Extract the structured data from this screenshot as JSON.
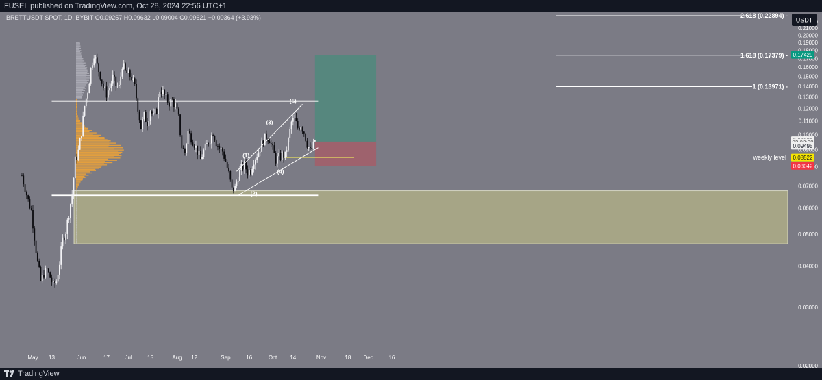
{
  "header": {
    "publish_line": "FUSEL published on TradingView.com, Oct 28, 2024 22:56 UTC+1"
  },
  "footer": {
    "brand": "TradingView"
  },
  "chart_data": {
    "type": "candlestick",
    "symbol_line": "BRETTUSDT SPOT, 1D, BYBIT  O0.09257  H0.09632  L0.09004  C0.09621  +0.00364 (+3.93%)",
    "currency_button": "USDT",
    "y_scale": "log",
    "ylim": [
      0.0197,
      0.2345
    ],
    "y_ticks": [
      "0.22000",
      "0.21000",
      "0.20000",
      "0.19000",
      "0.18000",
      "0.17000",
      "0.16000",
      "0.15000",
      "0.14000",
      "0.13000",
      "0.12000",
      "0.11000",
      "0.10000",
      "0.09000",
      "0.08000",
      "0.07000",
      "0.06000",
      "0.05000",
      "0.04000",
      "0.03000",
      "0.02000"
    ],
    "x_ticks": [
      {
        "label": "May",
        "date": "2024-05-01"
      },
      {
        "label": "13",
        "date": "2024-05-13"
      },
      {
        "label": "Jun",
        "date": "2024-06-01"
      },
      {
        "label": "17",
        "date": "2024-06-17"
      },
      {
        "label": "Jul",
        "date": "2024-07-01"
      },
      {
        "label": "15",
        "date": "2024-07-15"
      },
      {
        "label": "Aug",
        "date": "2024-08-01"
      },
      {
        "label": "12",
        "date": "2024-08-12"
      },
      {
        "label": "Sep",
        "date": "2024-09-01"
      },
      {
        "label": "16",
        "date": "2024-09-16"
      },
      {
        "label": "Oct",
        "date": "2024-10-01"
      },
      {
        "label": "14",
        "date": "2024-10-14"
      },
      {
        "label": "Nov",
        "date": "2024-11-01"
      },
      {
        "label": "18",
        "date": "2024-11-18"
      },
      {
        "label": "Dec",
        "date": "2024-12-01"
      },
      {
        "label": "16",
        "date": "2024-12-16"
      }
    ],
    "price_path": [
      [
        "2024-04-24",
        0.0752
      ],
      [
        "2024-04-26",
        0.069
      ],
      [
        "2024-04-28",
        0.063
      ],
      [
        "2024-04-30",
        0.059
      ],
      [
        "2024-05-02",
        0.049
      ],
      [
        "2024-05-04",
        0.041
      ],
      [
        "2024-05-06",
        0.036
      ],
      [
        "2024-05-08",
        0.038
      ],
      [
        "2024-05-10",
        0.039
      ],
      [
        "2024-05-12",
        0.037
      ],
      [
        "2024-05-14",
        0.035
      ],
      [
        "2024-05-16",
        0.036
      ],
      [
        "2024-05-18",
        0.041
      ],
      [
        "2024-05-20",
        0.048
      ],
      [
        "2024-05-22",
        0.051
      ],
      [
        "2024-05-24",
        0.058
      ],
      [
        "2024-05-26",
        0.066
      ],
      [
        "2024-05-28",
        0.083
      ],
      [
        "2024-05-30",
        0.089
      ],
      [
        "2024-06-01",
        0.102
      ],
      [
        "2024-06-03",
        0.122
      ],
      [
        "2024-06-05",
        0.136
      ],
      [
        "2024-06-07",
        0.158
      ],
      [
        "2024-06-09",
        0.176
      ],
      [
        "2024-06-11",
        0.162
      ],
      [
        "2024-06-13",
        0.151
      ],
      [
        "2024-06-15",
        0.139
      ],
      [
        "2024-06-17",
        0.133
      ],
      [
        "2024-06-19",
        0.139
      ],
      [
        "2024-06-21",
        0.149
      ],
      [
        "2024-06-23",
        0.141
      ],
      [
        "2024-06-25",
        0.139
      ],
      [
        "2024-06-27",
        0.163
      ],
      [
        "2024-06-29",
        0.155
      ],
      [
        "2024-07-01",
        0.152
      ],
      [
        "2024-07-03",
        0.149
      ],
      [
        "2024-07-05",
        0.139
      ],
      [
        "2024-07-07",
        0.121
      ],
      [
        "2024-07-09",
        0.105
      ],
      [
        "2024-07-11",
        0.114
      ],
      [
        "2024-07-13",
        0.109
      ],
      [
        "2024-07-15",
        0.119
      ],
      [
        "2024-07-17",
        0.113
      ],
      [
        "2024-07-19",
        0.119
      ],
      [
        "2024-07-21",
        0.137
      ],
      [
        "2024-07-23",
        0.134
      ],
      [
        "2024-07-25",
        0.128
      ],
      [
        "2024-07-27",
        0.125
      ],
      [
        "2024-07-29",
        0.127
      ],
      [
        "2024-07-31",
        0.122
      ],
      [
        "2024-08-02",
        0.112
      ],
      [
        "2024-08-04",
        0.092
      ],
      [
        "2024-08-06",
        0.088
      ],
      [
        "2024-08-08",
        0.102
      ],
      [
        "2024-08-10",
        0.098
      ],
      [
        "2024-08-12",
        0.094
      ],
      [
        "2024-08-14",
        0.089
      ],
      [
        "2024-08-16",
        0.084
      ],
      [
        "2024-08-18",
        0.089
      ],
      [
        "2024-08-20",
        0.093
      ],
      [
        "2024-08-22",
        0.097
      ],
      [
        "2024-08-24",
        0.102
      ],
      [
        "2024-08-26",
        0.095
      ],
      [
        "2024-08-28",
        0.091
      ],
      [
        "2024-08-30",
        0.089
      ],
      [
        "2024-09-01",
        0.083
      ],
      [
        "2024-09-03",
        0.076
      ],
      [
        "2024-09-05",
        0.068
      ],
      [
        "2024-09-07",
        0.069
      ],
      [
        "2024-09-09",
        0.075
      ],
      [
        "2024-09-11",
        0.079
      ],
      [
        "2024-09-13",
        0.081
      ],
      [
        "2024-09-15",
        0.077
      ],
      [
        "2024-09-17",
        0.078
      ],
      [
        "2024-09-19",
        0.084
      ],
      [
        "2024-09-21",
        0.087
      ],
      [
        "2024-09-23",
        0.091
      ],
      [
        "2024-09-25",
        0.096
      ],
      [
        "2024-09-27",
        0.099
      ],
      [
        "2024-09-29",
        0.097
      ],
      [
        "2024-10-01",
        0.09
      ],
      [
        "2024-10-03",
        0.084
      ],
      [
        "2024-10-05",
        0.085
      ],
      [
        "2024-10-07",
        0.087
      ],
      [
        "2024-10-09",
        0.086
      ],
      [
        "2024-10-11",
        0.096
      ],
      [
        "2024-10-13",
        0.109
      ],
      [
        "2024-10-15",
        0.111
      ],
      [
        "2024-10-17",
        0.105
      ],
      [
        "2024-10-19",
        0.107
      ],
      [
        "2024-10-21",
        0.102
      ],
      [
        "2024-10-23",
        0.094
      ],
      [
        "2024-10-25",
        0.089
      ],
      [
        "2024-10-27",
        0.0926
      ],
      [
        "2024-10-28",
        0.0962
      ]
    ],
    "horizontal_levels": [
      {
        "price": 0.1263,
        "label": "",
        "color": "#ffffff",
        "from": "2024-05-13",
        "to": "2024-10-30"
      },
      {
        "price": 0.0655,
        "label": "",
        "color": "#ffffff",
        "from": "2024-05-13",
        "to": "2024-10-30"
      },
      {
        "price": 0.0936,
        "label": "",
        "color": "#e03030",
        "from": "2024-05-13",
        "to": "2024-10-28"
      },
      {
        "price": 0.0852,
        "label": "weekly level",
        "color": "#e8e060",
        "from": "2024-10-08",
        "to": "2024-11-22"
      }
    ],
    "demand_zone": {
      "top": 0.0676,
      "bottom": 0.0467,
      "color": "#d2cf87"
    },
    "volume_profile_poc": 0.0887,
    "fib_levels": [
      {
        "label": "2.618 (0.22894)",
        "price": 0.22894
      },
      {
        "label": "1.618 (0.17379)",
        "price": 0.17379
      },
      {
        "label": "1 (0.13971)",
        "price": 0.13971
      }
    ],
    "position": {
      "entry": 0.0952,
      "target": 0.17379,
      "stop": 0.0804,
      "from": "2024-10-28",
      "to": "2024-12-06"
    },
    "wedge_lines": [
      [
        [
          "2024-09-08",
          0.0774
        ],
        [
          "2024-10-20",
          0.1235
        ]
      ],
      [
        [
          "2024-09-09",
          0.0655
        ],
        [
          "2024-10-30",
          0.0913
        ]
      ]
    ],
    "wave_labels": [
      {
        "label": "(1)",
        "date": "2024-09-14",
        "price": 0.0853
      },
      {
        "label": "(2)",
        "date": "2024-09-19",
        "price": 0.0654
      },
      {
        "label": "(3)",
        "date": "2024-09-29",
        "price": 0.1075
      },
      {
        "label": "(4)",
        "date": "2024-10-06",
        "price": 0.0763
      },
      {
        "label": "(5)",
        "date": "2024-10-14",
        "price": 0.1245
      }
    ],
    "price_tags": [
      {
        "text": "0.17429",
        "price": 0.17429,
        "bg": "#089981",
        "fg": "#ffffff"
      },
      {
        "text": "0.09621",
        "price": 0.09621,
        "bg": "#f0f0f0",
        "fg": "#131722"
      },
      {
        "text": "02:03:08",
        "price": 0.0947,
        "bg": "#f0f0f0",
        "fg": "#555555"
      },
      {
        "text": "0.09495",
        "price": 0.0925,
        "bg": "#f0f0f0",
        "fg": "#131722"
      },
      {
        "text": "0.08522",
        "price": 0.0852,
        "bg": "#f7e600",
        "fg": "#131722"
      },
      {
        "text": "0.08042",
        "price": 0.0804,
        "bg": "#f23645",
        "fg": "#ffffff"
      }
    ]
  }
}
